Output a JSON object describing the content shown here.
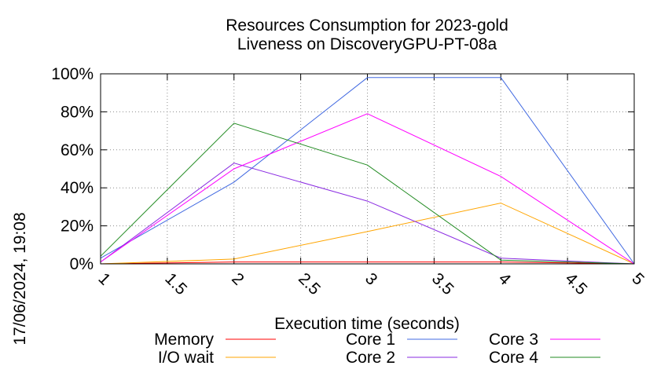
{
  "chart_data": {
    "type": "line",
    "title": "Resources Consumption for 2023-gold",
    "subtitle": "Liveness on DiscoveryGPU-PT-08a",
    "xlabel": "Execution time (seconds)",
    "ylabel": "",
    "timestamp": "17/06/2024, 19:08",
    "x": [
      1,
      2,
      3,
      4,
      5
    ],
    "xlim": [
      1,
      5
    ],
    "ylim": [
      0,
      100
    ],
    "x_ticks": [
      "1",
      "1.5",
      "2",
      "2.5",
      "3",
      "3.5",
      "4",
      "4.5",
      "5"
    ],
    "y_ticks": [
      "0%",
      "20%",
      "40%",
      "60%",
      "80%",
      "100%"
    ],
    "grid": true,
    "legend_position": "bottom",
    "series": [
      {
        "name": "Memory",
        "color": "#ff0000",
        "values": [
          0,
          1,
          1,
          1,
          0
        ]
      },
      {
        "name": "I/O wait",
        "color": "#ffa500",
        "values": [
          0,
          2.5,
          17,
          32,
          0
        ]
      },
      {
        "name": "Core 1",
        "color": "#4169e1",
        "values": [
          3,
          43,
          98,
          98,
          0
        ]
      },
      {
        "name": "Core 2",
        "color": "#8a2be2",
        "values": [
          1,
          53,
          33,
          3,
          0
        ]
      },
      {
        "name": "Core 3",
        "color": "#ff00ff",
        "values": [
          1,
          50,
          79,
          46,
          0
        ]
      },
      {
        "name": "Core 4",
        "color": "#228b22",
        "values": [
          4,
          74,
          52,
          2,
          0
        ]
      }
    ]
  }
}
